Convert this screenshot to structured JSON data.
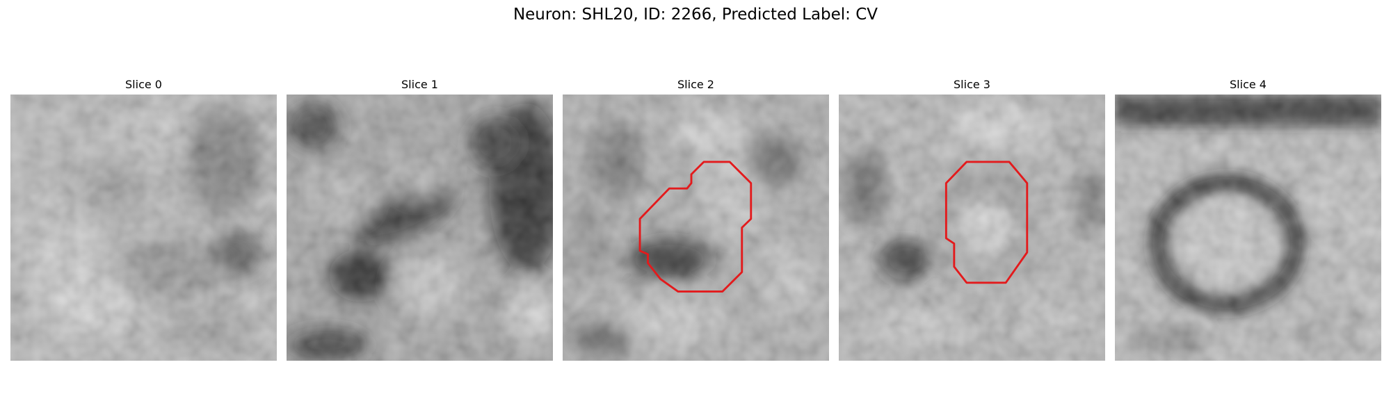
{
  "figure": {
    "title": "Neuron: SHL20, ID: 2266, Predicted Label: CV"
  },
  "panels": [
    {
      "title": "Slice 0",
      "has_contour": false
    },
    {
      "title": "Slice 1",
      "has_contour": false
    },
    {
      "title": "Slice 2",
      "has_contour": true
    },
    {
      "title": "Slice 3",
      "has_contour": true
    },
    {
      "title": "Slice 4",
      "has_contour": false
    }
  ],
  "colors": {
    "contour": "#e31a1c",
    "background": "#ffffff"
  },
  "colormap": "grayscale"
}
